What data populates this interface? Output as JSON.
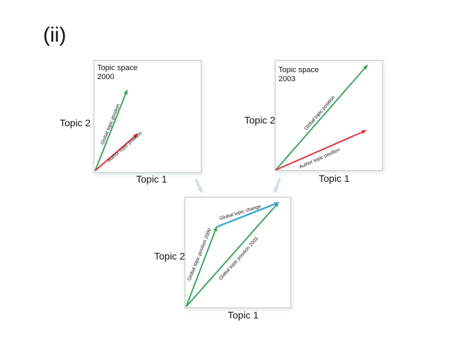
{
  "panel_label": "(ii)",
  "colors": {
    "green": "#3aa55a",
    "red": "#e4303a",
    "blue": "#3ea8d6",
    "connector": "#cfe2e5",
    "box_border": "#c8d0cc"
  },
  "box_2000": {
    "title_line1": "Topic space",
    "title_line2": "2000",
    "y_axis": "Topic 2",
    "x_axis": "Topic 1",
    "arrow_global": "Global topic position",
    "arrow_author": "Author topic position"
  },
  "box_2003": {
    "title_line1": "Topic space",
    "title_line2": "2003",
    "y_axis": "Topic 2",
    "x_axis": "Topic 1",
    "arrow_global": "Global topic position",
    "arrow_author": "Author topic position"
  },
  "box_change": {
    "y_axis": "Topic 2",
    "x_axis": "Topic 1",
    "arrow_2000": "Global topic position 2000",
    "arrow_2003": "Global topic position 2003",
    "arrow_change": "Global topic change"
  }
}
